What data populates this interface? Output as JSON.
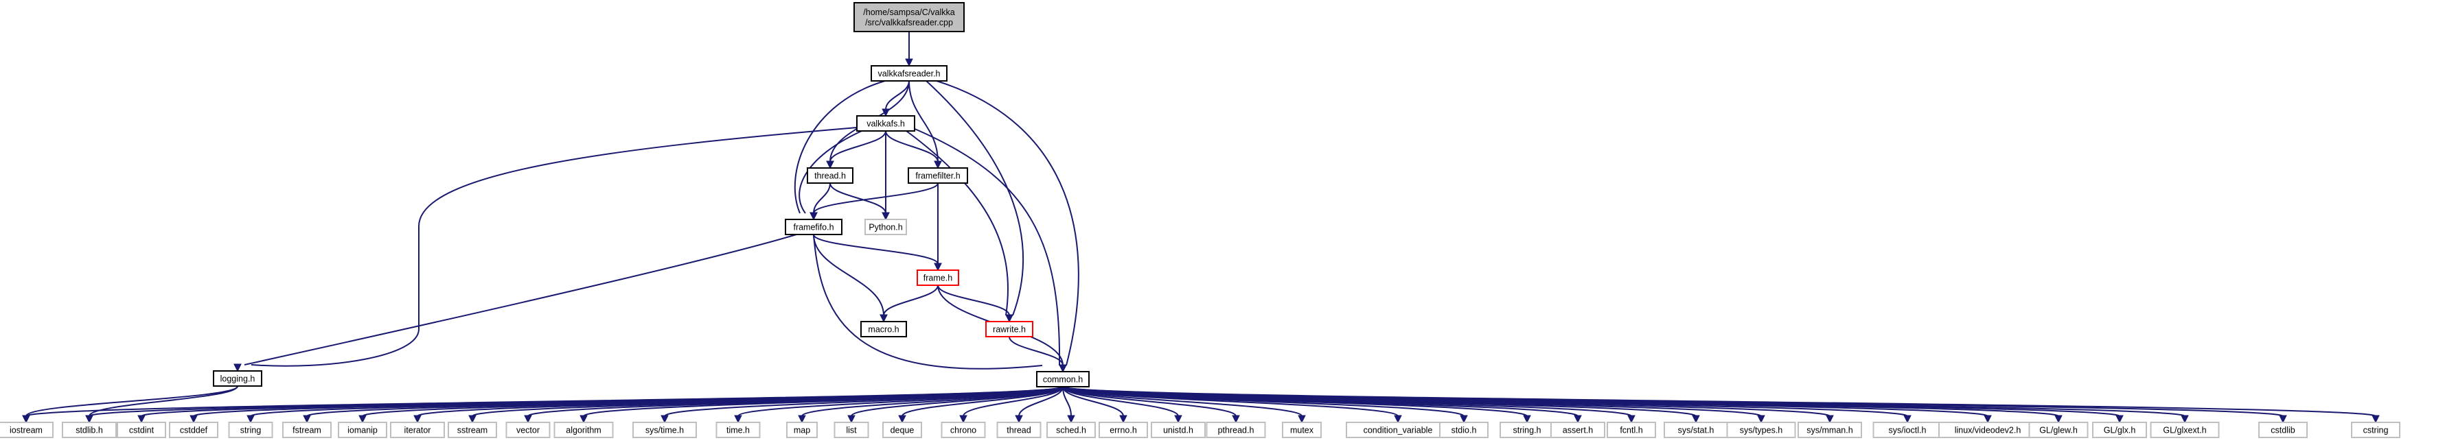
{
  "colors": {
    "edge": "#191970",
    "root_fill": "#bfbfbf",
    "root_border": "#000000",
    "node_border": "#000000",
    "truncated_border": "#ff0000",
    "leaf_border": "#bfbfbf",
    "background": "#ffffff"
  },
  "nodes": [
    {
      "id": "root",
      "lines": [
        "/home/sampsa/C/valkka",
        "/src/valkkafsreader.cpp"
      ],
      "kind": "root"
    },
    {
      "id": "valkkafsreader",
      "lines": [
        "valkkafsreader.h"
      ],
      "kind": "normal"
    },
    {
      "id": "valkkafs",
      "lines": [
        "valkkafs.h"
      ],
      "kind": "normal"
    },
    {
      "id": "thread",
      "lines": [
        "thread.h"
      ],
      "kind": "normal"
    },
    {
      "id": "framefilter",
      "lines": [
        "framefilter.h"
      ],
      "kind": "normal"
    },
    {
      "id": "python",
      "lines": [
        "Python.h"
      ],
      "kind": "leaf"
    },
    {
      "id": "framefifo",
      "lines": [
        "framefifo.h"
      ],
      "kind": "normal"
    },
    {
      "id": "frame",
      "lines": [
        "frame.h"
      ],
      "kind": "truncated"
    },
    {
      "id": "macro",
      "lines": [
        "macro.h"
      ],
      "kind": "normal"
    },
    {
      "id": "rawrite",
      "lines": [
        "rawrite.h"
      ],
      "kind": "truncated"
    },
    {
      "id": "logging",
      "lines": [
        "logging.h"
      ],
      "kind": "normal"
    },
    {
      "id": "common",
      "lines": [
        "common.h"
      ],
      "kind": "normal"
    },
    {
      "id": "iostream",
      "lines": [
        "iostream"
      ],
      "kind": "leaf"
    },
    {
      "id": "stdlib",
      "lines": [
        "stdlib.h"
      ],
      "kind": "leaf"
    },
    {
      "id": "cstdint",
      "lines": [
        "cstdint"
      ],
      "kind": "leaf"
    },
    {
      "id": "cstddef",
      "lines": [
        "cstddef"
      ],
      "kind": "leaf"
    },
    {
      "id": "string",
      "lines": [
        "string"
      ],
      "kind": "leaf"
    },
    {
      "id": "fstream",
      "lines": [
        "fstream"
      ],
      "kind": "leaf"
    },
    {
      "id": "iomanip",
      "lines": [
        "iomanip"
      ],
      "kind": "leaf"
    },
    {
      "id": "iterator",
      "lines": [
        "iterator"
      ],
      "kind": "leaf"
    },
    {
      "id": "sstream",
      "lines": [
        "sstream"
      ],
      "kind": "leaf"
    },
    {
      "id": "vector",
      "lines": [
        "vector"
      ],
      "kind": "leaf"
    },
    {
      "id": "algorithm",
      "lines": [
        "algorithm"
      ],
      "kind": "leaf"
    },
    {
      "id": "systime",
      "lines": [
        "sys/time.h"
      ],
      "kind": "leaf"
    },
    {
      "id": "timeh",
      "lines": [
        "time.h"
      ],
      "kind": "leaf"
    },
    {
      "id": "map",
      "lines": [
        "map"
      ],
      "kind": "leaf"
    },
    {
      "id": "list",
      "lines": [
        "list"
      ],
      "kind": "leaf"
    },
    {
      "id": "deque",
      "lines": [
        "deque"
      ],
      "kind": "leaf"
    },
    {
      "id": "chrono",
      "lines": [
        "chrono"
      ],
      "kind": "leaf"
    },
    {
      "id": "threadstd",
      "lines": [
        "thread"
      ],
      "kind": "leaf"
    },
    {
      "id": "sched",
      "lines": [
        "sched.h"
      ],
      "kind": "leaf"
    },
    {
      "id": "errno",
      "lines": [
        "errno.h"
      ],
      "kind": "leaf"
    },
    {
      "id": "unistd",
      "lines": [
        "unistd.h"
      ],
      "kind": "leaf"
    },
    {
      "id": "pthread",
      "lines": [
        "pthread.h"
      ],
      "kind": "leaf"
    },
    {
      "id": "mutex",
      "lines": [
        "mutex"
      ],
      "kind": "leaf"
    },
    {
      "id": "condvar",
      "lines": [
        "condition_variable"
      ],
      "kind": "leaf"
    },
    {
      "id": "stdio",
      "lines": [
        "stdio.h"
      ],
      "kind": "leaf"
    },
    {
      "id": "stringh",
      "lines": [
        "string.h"
      ],
      "kind": "leaf"
    },
    {
      "id": "assert",
      "lines": [
        "assert.h"
      ],
      "kind": "leaf"
    },
    {
      "id": "fcntl",
      "lines": [
        "fcntl.h"
      ],
      "kind": "leaf"
    },
    {
      "id": "sysstat",
      "lines": [
        "sys/stat.h"
      ],
      "kind": "leaf"
    },
    {
      "id": "systypes",
      "lines": [
        "sys/types.h"
      ],
      "kind": "leaf"
    },
    {
      "id": "sysmman",
      "lines": [
        "sys/mman.h"
      ],
      "kind": "leaf"
    },
    {
      "id": "sysioctl",
      "lines": [
        "sys/ioctl.h"
      ],
      "kind": "leaf"
    },
    {
      "id": "videodev",
      "lines": [
        "linux/videodev2.h"
      ],
      "kind": "leaf"
    },
    {
      "id": "glew",
      "lines": [
        "GL/glew.h"
      ],
      "kind": "leaf"
    },
    {
      "id": "glx",
      "lines": [
        "GL/glx.h"
      ],
      "kind": "leaf"
    },
    {
      "id": "glxext",
      "lines": [
        "GL/glxext.h"
      ],
      "kind": "leaf"
    },
    {
      "id": "cstdlib",
      "lines": [
        "cstdlib"
      ],
      "kind": "leaf"
    },
    {
      "id": "cstring",
      "lines": [
        "cstring"
      ],
      "kind": "leaf"
    }
  ],
  "edges": [
    [
      "root",
      "valkkafsreader"
    ],
    [
      "valkkafsreader",
      "valkkafs"
    ],
    [
      "valkkafsreader",
      "thread"
    ],
    [
      "valkkafsreader",
      "framefilter"
    ],
    [
      "valkkafsreader",
      "framefifo"
    ],
    [
      "valkkafsreader",
      "rawrite"
    ],
    [
      "valkkafsreader",
      "common"
    ],
    [
      "valkkafs",
      "thread"
    ],
    [
      "valkkafs",
      "framefilter"
    ],
    [
      "valkkafs",
      "python"
    ],
    [
      "valkkafs",
      "framefifo"
    ],
    [
      "valkkafs",
      "rawrite"
    ],
    [
      "valkkafs",
      "common"
    ],
    [
      "valkkafs",
      "logging"
    ],
    [
      "thread",
      "framefifo"
    ],
    [
      "thread",
      "python"
    ],
    [
      "framefilter",
      "framefifo"
    ],
    [
      "framefilter",
      "frame"
    ],
    [
      "framefifo",
      "frame"
    ],
    [
      "framefifo",
      "macro"
    ],
    [
      "framefifo",
      "logging"
    ],
    [
      "framefifo",
      "common"
    ],
    [
      "frame",
      "macro"
    ],
    [
      "frame",
      "rawrite"
    ],
    [
      "frame",
      "common"
    ],
    [
      "rawrite",
      "common"
    ],
    [
      "logging",
      "iostream"
    ],
    [
      "logging",
      "stdlib"
    ],
    [
      "common",
      "iostream"
    ],
    [
      "common",
      "stdlib"
    ],
    [
      "common",
      "cstdint"
    ],
    [
      "common",
      "cstddef"
    ],
    [
      "common",
      "string"
    ],
    [
      "common",
      "fstream"
    ],
    [
      "common",
      "iomanip"
    ],
    [
      "common",
      "iterator"
    ],
    [
      "common",
      "sstream"
    ],
    [
      "common",
      "vector"
    ],
    [
      "common",
      "algorithm"
    ],
    [
      "common",
      "systime"
    ],
    [
      "common",
      "timeh"
    ],
    [
      "common",
      "map"
    ],
    [
      "common",
      "list"
    ],
    [
      "common",
      "deque"
    ],
    [
      "common",
      "chrono"
    ],
    [
      "common",
      "threadstd"
    ],
    [
      "common",
      "sched"
    ],
    [
      "common",
      "errno"
    ],
    [
      "common",
      "unistd"
    ],
    [
      "common",
      "pthread"
    ],
    [
      "common",
      "mutex"
    ],
    [
      "common",
      "condvar"
    ],
    [
      "common",
      "stdio"
    ],
    [
      "common",
      "stringh"
    ],
    [
      "common",
      "assert"
    ],
    [
      "common",
      "fcntl"
    ],
    [
      "common",
      "sysstat"
    ],
    [
      "common",
      "systypes"
    ],
    [
      "common",
      "sysmman"
    ],
    [
      "common",
      "sysioctl"
    ],
    [
      "common",
      "videodev"
    ],
    [
      "common",
      "glew"
    ],
    [
      "common",
      "glx"
    ],
    [
      "common",
      "glxext"
    ],
    [
      "common",
      "cstdlib"
    ],
    [
      "common",
      "cstring"
    ]
  ]
}
